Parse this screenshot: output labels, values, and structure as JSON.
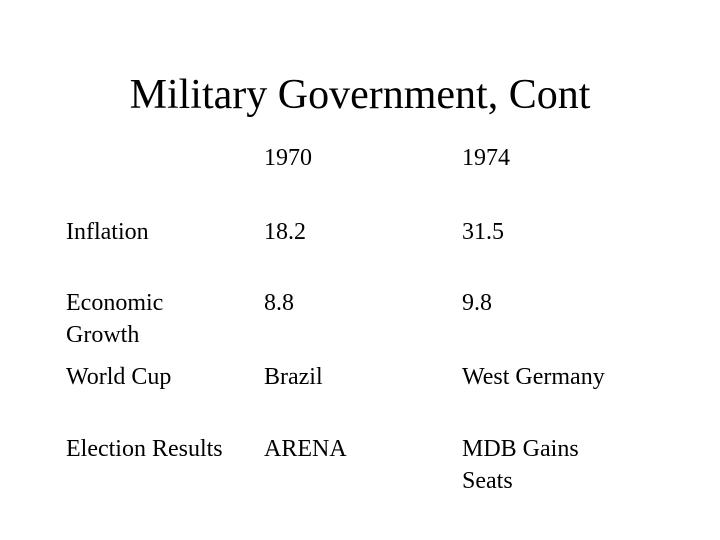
{
  "slide": {
    "title": "Military Government, Cont"
  },
  "table": {
    "columns": [
      "1970",
      "1974"
    ],
    "rows": [
      {
        "label": [
          "Inflation"
        ],
        "values": [
          [
            "18.2"
          ],
          [
            "31.5"
          ]
        ]
      },
      {
        "label": [
          "Economic",
          "Growth"
        ],
        "values": [
          [
            "8.8"
          ],
          [
            "9.8"
          ]
        ]
      },
      {
        "label": [
          "World Cup"
        ],
        "values": [
          [
            "Brazil"
          ],
          [
            "West Germany"
          ]
        ]
      },
      {
        "label": [
          "Election Results"
        ],
        "values": [
          [
            "ARENA"
          ],
          [
            "MDB Gains",
            "Seats"
          ]
        ]
      }
    ]
  }
}
